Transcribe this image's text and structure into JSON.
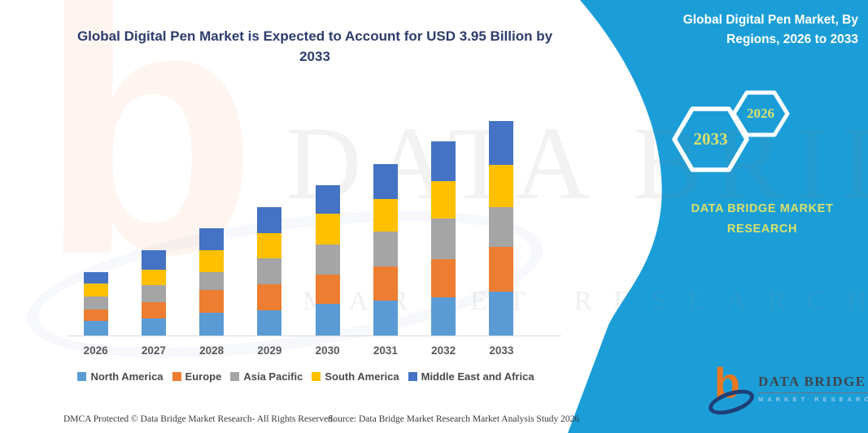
{
  "header": {
    "chart_title": "Global Digital Pen Market is Expected to Account for USD 3.95 Billion by 2033",
    "panel_title": "Global Digital Pen Market, By Regions, 2026 to 2033"
  },
  "panel": {
    "hexagon_back_year": "2033",
    "hexagon_front_year": "2026",
    "brand_name": "DATA BRIDGE MARKET RESEARCH",
    "accent_color": "#1b9ed8",
    "hex_text_color": "#d9e06b"
  },
  "watermark": {
    "letter": "b",
    "big_text": "DATA BRIDGE",
    "sub_text": "MARKET RESEARCH"
  },
  "logo": {
    "brand": "DATA BRIDGE",
    "sub": "MARKET RESEARCH"
  },
  "footer": {
    "left": "DMCA Protected © Data Bridge Market Research-  All Rights Reserved.",
    "right": "Source: Data Bridge Market Research  Market Analysis Study 2026"
  },
  "chart_data": {
    "type": "bar",
    "subtype": "stacked",
    "title": "Global Digital Pen Market is Expected to Account for USD 3.95 Billion by 2033",
    "unit": "USD Billion",
    "xlabel": "",
    "ylabel": "",
    "ylim": [
      0,
      3.95
    ],
    "grid": false,
    "legend_position": "bottom",
    "categories": [
      "2026",
      "2027",
      "2028",
      "2029",
      "2030",
      "2031",
      "2032",
      "2033"
    ],
    "series": [
      {
        "name": "North America",
        "color": "#5b9bd5",
        "values": [
          0.27,
          0.31,
          0.42,
          0.46,
          0.58,
          0.64,
          0.7,
          0.81
        ]
      },
      {
        "name": "Europe",
        "color": "#ed7d31",
        "values": [
          0.21,
          0.31,
          0.42,
          0.48,
          0.54,
          0.63,
          0.7,
          0.82
        ]
      },
      {
        "name": "Asia Pacific",
        "color": "#a5a5a5",
        "values": [
          0.24,
          0.31,
          0.33,
          0.49,
          0.55,
          0.64,
          0.75,
          0.73
        ]
      },
      {
        "name": "South America",
        "color": "#ffc000",
        "values": [
          0.24,
          0.28,
          0.4,
          0.45,
          0.57,
          0.61,
          0.7,
          0.79
        ]
      },
      {
        "name": "Middle East and Africa",
        "color": "#4472c4",
        "values": [
          0.21,
          0.36,
          0.4,
          0.49,
          0.52,
          0.63,
          0.72,
          0.8
        ]
      }
    ],
    "annotations": [
      "2033 total = USD 3.95 Billion"
    ]
  }
}
